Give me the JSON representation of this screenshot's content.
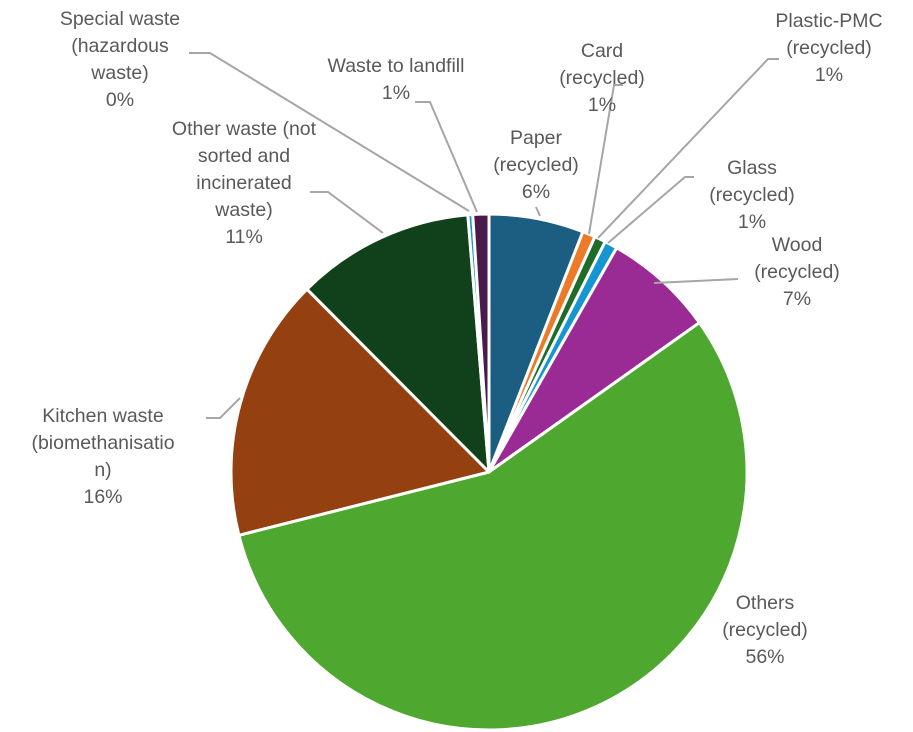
{
  "chart_data": {
    "type": "pie",
    "title": "",
    "slices": [
      {
        "label": [
          "Paper",
          "(recycled)"
        ],
        "pct_text": "6%",
        "value": 5.9,
        "color": "#1b5e82"
      },
      {
        "label": [
          "Card",
          "(recycled)"
        ],
        "pct_text": "1%",
        "value": 0.8,
        "color": "#ec7a27"
      },
      {
        "label": [
          "Plastic-PMC",
          "(recycled)"
        ],
        "pct_text": "1%",
        "value": 0.7,
        "color": "#1f6b29"
      },
      {
        "label": [
          "Glass",
          "(recycled)"
        ],
        "pct_text": "1%",
        "value": 0.8,
        "color": "#1596d1"
      },
      {
        "label": [
          "Wood",
          "(recycled)"
        ],
        "pct_text": "7%",
        "value": 6.9,
        "color": "#9b2b94"
      },
      {
        "label": [
          "Others",
          "(recycled)"
        ],
        "pct_text": "56%",
        "value": 55.6,
        "color": "#4ea72e"
      },
      {
        "label": [
          "Kitchen waste",
          "(biomethanisatio",
          "n)"
        ],
        "pct_text": "16%",
        "value": 16.4,
        "color": "#954011"
      },
      {
        "label": [
          "Other waste (not",
          "sorted and",
          "incinerated",
          "waste)"
        ],
        "pct_text": "11%",
        "value": 11.1,
        "color": "#11411a"
      },
      {
        "label": [
          "Special waste",
          "(hazardous",
          "waste)"
        ],
        "pct_text": "0%",
        "value": 0.3,
        "color": "#1596d1"
      },
      {
        "label": [
          "Waste to landfill"
        ],
        "pct_text": "1%",
        "value": 1.0,
        "color": "#4a1a4a"
      }
    ]
  }
}
